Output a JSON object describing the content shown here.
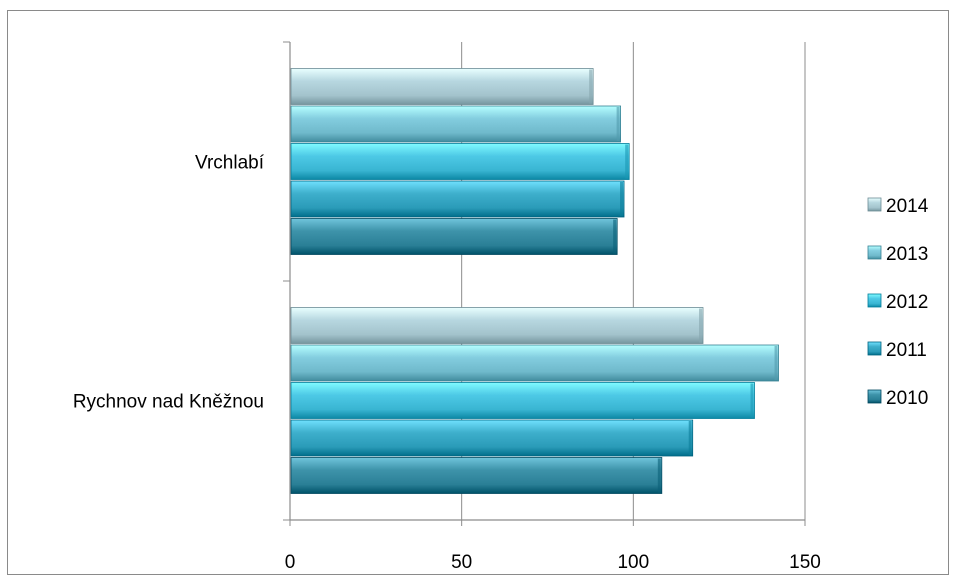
{
  "chart_data": {
    "type": "bar",
    "orientation": "horizontal",
    "categories": [
      "Vrchlabí",
      "Rychnov nad Kněžnou"
    ],
    "series": [
      {
        "name": "2010",
        "color": "#2a7f96",
        "values": [
          95,
          108
        ]
      },
      {
        "name": "2011",
        "color": "#2a9bb8",
        "values": [
          97,
          117
        ]
      },
      {
        "name": "2012",
        "color": "#39b5d2",
        "values": [
          98.5,
          135
        ]
      },
      {
        "name": "2013",
        "color": "#6fb9cb",
        "values": [
          96,
          142
        ]
      },
      {
        "name": "2014",
        "color": "#a3c3cc",
        "values": [
          88,
          120
        ]
      }
    ],
    "title": "",
    "xlabel": "",
    "ylabel": "",
    "xlim": [
      0,
      150
    ],
    "xticks": [
      "0",
      "50",
      "100",
      "150"
    ],
    "grid": true,
    "legend_position": "right",
    "legend_order": [
      "2014",
      "2013",
      "2012",
      "2011",
      "2010"
    ]
  }
}
